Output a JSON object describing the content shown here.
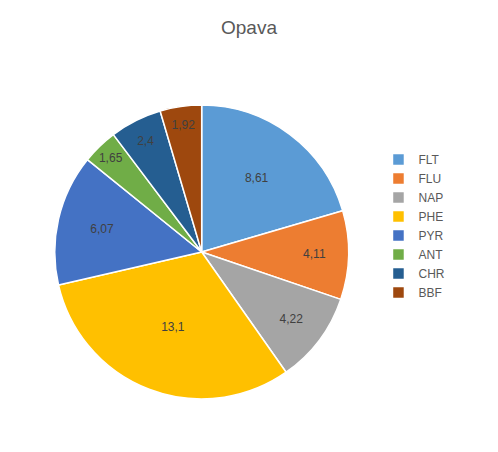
{
  "chart_data": {
    "type": "pie",
    "title": "Opava",
    "categories": [
      "FLT",
      "FLU",
      "NAP",
      "PHE",
      "PYR",
      "ANT",
      "CHR",
      "BBF"
    ],
    "values": [
      8.61,
      4.11,
      4.22,
      13.1,
      6.07,
      1.65,
      2.4,
      1.92
    ],
    "value_labels": [
      "8,61",
      "4,11",
      "4,22",
      "13,1",
      "6,07",
      "1,65",
      "2,4",
      "1,92"
    ],
    "colors": [
      "#5b9bd5",
      "#ed7d31",
      "#a5a5a5",
      "#ffc000",
      "#4472c4",
      "#70ad47",
      "#255e91",
      "#9e480e"
    ],
    "data_labels": true,
    "legend": "right"
  }
}
